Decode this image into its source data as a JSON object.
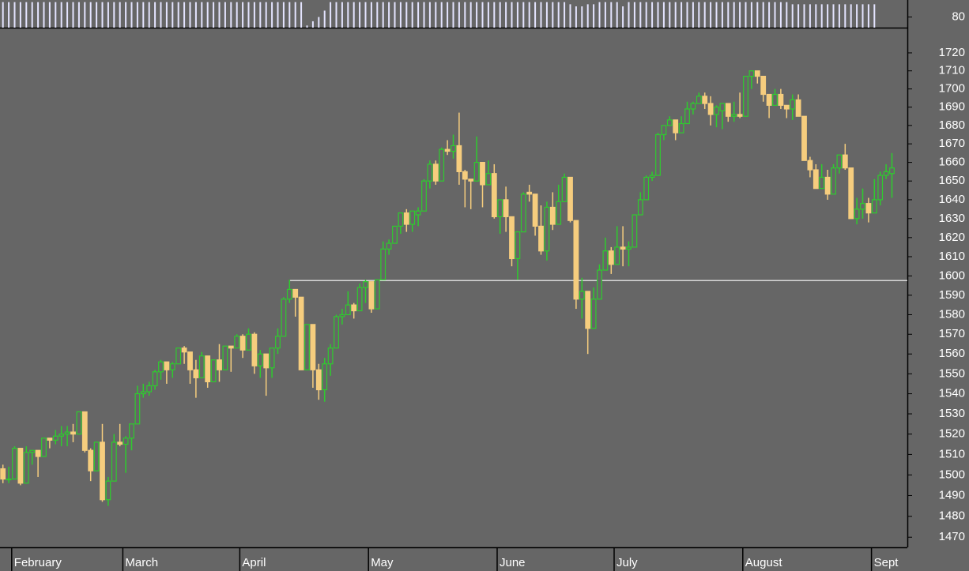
{
  "chart_data": [
    {
      "type": "bar",
      "color": "#e4e4ff",
      "ylim": [
        75,
        88
      ],
      "yticks": [
        80
      ],
      "values": [
        87,
        87,
        87,
        87,
        87,
        87,
        87,
        87,
        87,
        87,
        87,
        87,
        87,
        87,
        87,
        87,
        87,
        87,
        87,
        87,
        87,
        87,
        87,
        87,
        87,
        87,
        87,
        87,
        87,
        87,
        87,
        87,
        87,
        87,
        87,
        87,
        87,
        87,
        87,
        87,
        87,
        87,
        87,
        87,
        87,
        87,
        87,
        87,
        87,
        87,
        87,
        87,
        76,
        78,
        80,
        83,
        87,
        87,
        87,
        87,
        87,
        87,
        87,
        87,
        87,
        87,
        87,
        87,
        87,
        87,
        87,
        87,
        87,
        87,
        87,
        87,
        87,
        87,
        87,
        87,
        87,
        87,
        87,
        87,
        87,
        87,
        87,
        87,
        87,
        87,
        87,
        87,
        87,
        87,
        87,
        87,
        87,
        86,
        85,
        85,
        86,
        86,
        87,
        87,
        87,
        87,
        85,
        87,
        87,
        87,
        87,
        87,
        87,
        87,
        87,
        87,
        87,
        87,
        87,
        87,
        87,
        87,
        87,
        87,
        87,
        87,
        87,
        87,
        87,
        87,
        87,
        87,
        87,
        87,
        87,
        86,
        86,
        86,
        86,
        86,
        86,
        86,
        86,
        86,
        86,
        86,
        86,
        86,
        86,
        86
      ]
    },
    {
      "type": "candlestick",
      "log": true,
      "up_color": "#2ecc2e",
      "down_color": "#f6cd7e",
      "ylim": [
        1465.2,
        1732.8
      ],
      "yticks": [
        1470,
        1480,
        1490,
        1500,
        1510,
        1520,
        1530,
        1540,
        1550,
        1560,
        1570,
        1580,
        1590,
        1600,
        1610,
        1620,
        1630,
        1640,
        1650,
        1660,
        1670,
        1680,
        1690,
        1700,
        1710,
        1720
      ],
      "hline": 1597.6,
      "hline_color": "#d8d8d8",
      "categories": [
        null,
        null,
        "February",
        null,
        null,
        null,
        null,
        null,
        null,
        null,
        null,
        null,
        null,
        null,
        null,
        null,
        null,
        null,
        null,
        null,
        null,
        "March",
        null,
        null,
        null,
        null,
        null,
        null,
        null,
        null,
        null,
        null,
        null,
        null,
        null,
        null,
        null,
        null,
        null,
        null,
        null,
        "April",
        null,
        null,
        null,
        null,
        null,
        null,
        null,
        null,
        null,
        null,
        null,
        null,
        null,
        null,
        null,
        null,
        null,
        null,
        null,
        null,
        null,
        "May",
        null,
        null,
        null,
        null,
        null,
        null,
        null,
        null,
        null,
        null,
        null,
        null,
        null,
        null,
        null,
        null,
        null,
        null,
        null,
        null,
        null,
        "June",
        null,
        null,
        null,
        null,
        null,
        null,
        null,
        null,
        null,
        null,
        null,
        null,
        null,
        null,
        null,
        null,
        null,
        null,
        null,
        "July",
        null,
        null,
        null,
        null,
        null,
        null,
        null,
        null,
        null,
        null,
        null,
        null,
        null,
        null,
        null,
        null,
        null,
        null,
        null,
        null,
        null,
        "August",
        null,
        null,
        null,
        null,
        null,
        null,
        null,
        null,
        null,
        null,
        null,
        null,
        null,
        null,
        null,
        null,
        null,
        null,
        null,
        null,
        null,
        "Sept",
        null,
        null,
        null
      ],
      "open": [
        1503,
        1498,
        1498,
        1513,
        1496,
        1511,
        1512,
        1509,
        1518,
        1517,
        1519,
        1520,
        1521,
        1520,
        1531,
        1512,
        1502,
        1516,
        1488,
        1497,
        1516,
        1515,
        1518,
        1525,
        1540,
        1541,
        1544,
        1551,
        1556,
        1552,
        1555,
        1563,
        1561,
        1552,
        1548,
        1559,
        1546,
        1557,
        1552,
        1564,
        1563,
        1569,
        1562,
        1570,
        1554,
        1560,
        1553,
        1563,
        1569,
        1588,
        1593,
        1589,
        1552,
        1575,
        1552,
        1542,
        1555,
        1563,
        1579,
        1580,
        1585,
        1582,
        1594,
        1597,
        1583,
        1598,
        1614,
        1617,
        1626,
        1633,
        1627,
        1632,
        1634,
        1650,
        1659,
        1650,
        1667,
        1666,
        1669,
        1655,
        1651,
        1650,
        1660,
        1648,
        1654,
        1631,
        1640,
        1631,
        1609,
        1623,
        1644,
        1643,
        1626,
        1613,
        1636,
        1627,
        1639,
        1652,
        1629,
        1588,
        1592,
        1573,
        1588,
        1603,
        1613,
        1606,
        1615,
        1614,
        1615,
        1632,
        1640,
        1652,
        1653,
        1675,
        1680,
        1683,
        1676,
        1681,
        1689,
        1692,
        1696,
        1692,
        1686,
        1688,
        1692,
        1685,
        1686,
        1685,
        1707,
        1710,
        1707,
        1697,
        1691,
        1697,
        1691,
        1689,
        1694,
        1685,
        1661,
        1656,
        1646,
        1652,
        1643,
        1657,
        1664,
        1657,
        1630,
        1635,
        1638,
        1633,
        1640,
        1653,
        1654
      ],
      "high": [
        1505,
        1504,
        1514,
        1513,
        1514,
        1512,
        1512,
        1518,
        1518,
        1522,
        1524,
        1524,
        1525,
        1531,
        1531,
        1513,
        1516,
        1525,
        1499,
        1520,
        1525,
        1519,
        1525,
        1544,
        1545,
        1546,
        1552,
        1557,
        1556,
        1556,
        1563,
        1564,
        1561,
        1557,
        1561,
        1559,
        1557,
        1565,
        1564,
        1564,
        1570,
        1570,
        1573,
        1571,
        1562,
        1560,
        1563,
        1573,
        1589,
        1598,
        1593,
        1589,
        1575,
        1575,
        1555,
        1558,
        1565,
        1580,
        1583,
        1592,
        1586,
        1596,
        1598,
        1597,
        1598,
        1618,
        1619,
        1626,
        1633,
        1635,
        1634,
        1636,
        1651,
        1661,
        1661,
        1668,
        1672,
        1675,
        1687,
        1656,
        1651,
        1674,
        1660,
        1661,
        1659,
        1640,
        1647,
        1631,
        1623,
        1644,
        1648,
        1643,
        1637,
        1639,
        1644,
        1648,
        1654,
        1652,
        1629,
        1599,
        1592,
        1594,
        1606,
        1620,
        1615,
        1626,
        1626,
        1618,
        1632,
        1644,
        1653,
        1655,
        1676,
        1680,
        1685,
        1683,
        1685,
        1693,
        1693,
        1698,
        1698,
        1696,
        1691,
        1692,
        1692,
        1693,
        1698,
        1707,
        1710,
        1710,
        1707,
        1697,
        1700,
        1700,
        1691,
        1697,
        1697,
        1685,
        1663,
        1659,
        1659,
        1656,
        1659,
        1664,
        1670,
        1657,
        1641,
        1646,
        1641,
        1651,
        1655,
        1659,
        1665
      ],
      "low": [
        1496,
        1496,
        1498,
        1495,
        1496,
        1505,
        1499,
        1509,
        1513,
        1515,
        1514,
        1514,
        1516,
        1520,
        1511,
        1497,
        1502,
        1487,
        1485,
        1497,
        1514,
        1501,
        1512,
        1525,
        1538,
        1539,
        1542,
        1547,
        1545,
        1548,
        1555,
        1555,
        1545,
        1538,
        1548,
        1543,
        1546,
        1546,
        1552,
        1551,
        1563,
        1558,
        1562,
        1550,
        1548,
        1539,
        1548,
        1560,
        1569,
        1586,
        1579,
        1552,
        1552,
        1543,
        1537,
        1536,
        1549,
        1563,
        1575,
        1580,
        1578,
        1582,
        1586,
        1581,
        1583,
        1598,
        1611,
        1617,
        1622,
        1623,
        1623,
        1626,
        1634,
        1646,
        1648,
        1650,
        1664,
        1662,
        1648,
        1636,
        1635,
        1650,
        1636,
        1648,
        1630,
        1622,
        1623,
        1605,
        1598,
        1623,
        1639,
        1621,
        1611,
        1608,
        1624,
        1627,
        1639,
        1628,
        1583,
        1578,
        1560,
        1573,
        1588,
        1603,
        1601,
        1606,
        1605,
        1605,
        1615,
        1632,
        1640,
        1650,
        1653,
        1672,
        1680,
        1672,
        1676,
        1681,
        1686,
        1692,
        1689,
        1680,
        1679,
        1678,
        1682,
        1682,
        1684,
        1685,
        1700,
        1703,
        1693,
        1684,
        1691,
        1689,
        1684,
        1683,
        1685,
        1661,
        1652,
        1646,
        1646,
        1640,
        1643,
        1654,
        1656,
        1630,
        1627,
        1630,
        1628,
        1633,
        1637,
        1651,
        1641
      ],
      "close": [
        1498,
        1498,
        1513,
        1496,
        1511,
        1512,
        1509,
        1518,
        1517,
        1519,
        1520,
        1521,
        1520,
        1531,
        1512,
        1502,
        1516,
        1488,
        1497,
        1516,
        1515,
        1518,
        1525,
        1540,
        1541,
        1544,
        1551,
        1556,
        1552,
        1555,
        1563,
        1561,
        1552,
        1548,
        1559,
        1546,
        1557,
        1552,
        1564,
        1563,
        1569,
        1562,
        1570,
        1554,
        1560,
        1553,
        1563,
        1569,
        1588,
        1593,
        1589,
        1552,
        1575,
        1552,
        1542,
        1555,
        1563,
        1579,
        1580,
        1585,
        1582,
        1594,
        1597,
        1583,
        1598,
        1614,
        1617,
        1626,
        1633,
        1627,
        1634,
        1634,
        1650,
        1659,
        1650,
        1667,
        1666,
        1669,
        1655,
        1651,
        1650,
        1660,
        1648,
        1654,
        1631,
        1640,
        1631,
        1609,
        1623,
        1643,
        1643,
        1626,
        1613,
        1636,
        1627,
        1639,
        1652,
        1629,
        1588,
        1592,
        1573,
        1588,
        1603,
        1613,
        1606,
        1615,
        1614,
        1615,
        1632,
        1640,
        1652,
        1653,
        1675,
        1680,
        1683,
        1676,
        1681,
        1689,
        1692,
        1696,
        1692,
        1686,
        1690,
        1692,
        1685,
        1686,
        1685,
        1707,
        1710,
        1707,
        1697,
        1691,
        1697,
        1691,
        1689,
        1694,
        1685,
        1661,
        1656,
        1646,
        1652,
        1643,
        1657,
        1664,
        1657,
        1630,
        1635,
        1638,
        1633,
        1640,
        1653,
        1655,
        1657
      ]
    }
  ]
}
